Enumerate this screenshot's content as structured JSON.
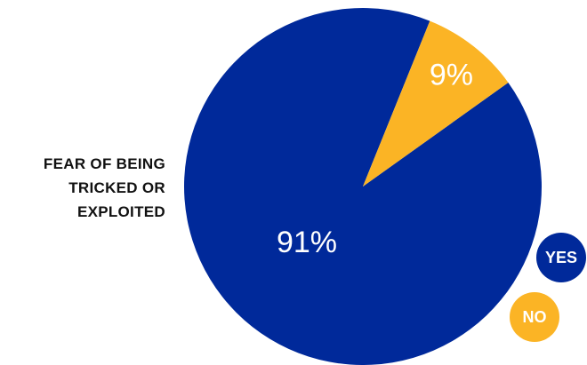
{
  "chart_data": {
    "type": "pie",
    "title_lines": [
      "FEAR OF BEING",
      "TRICKED OR",
      "EXPLOITED"
    ],
    "slices": [
      {
        "label": "YES",
        "value": 91,
        "display": "91%",
        "color": "#00299A"
      },
      {
        "label": "NO",
        "value": 9,
        "display": "9%",
        "color": "#FBB425"
      }
    ],
    "legend": [
      {
        "label": "YES",
        "color": "#00299A"
      },
      {
        "label": "NO",
        "color": "#FBB425"
      }
    ]
  }
}
